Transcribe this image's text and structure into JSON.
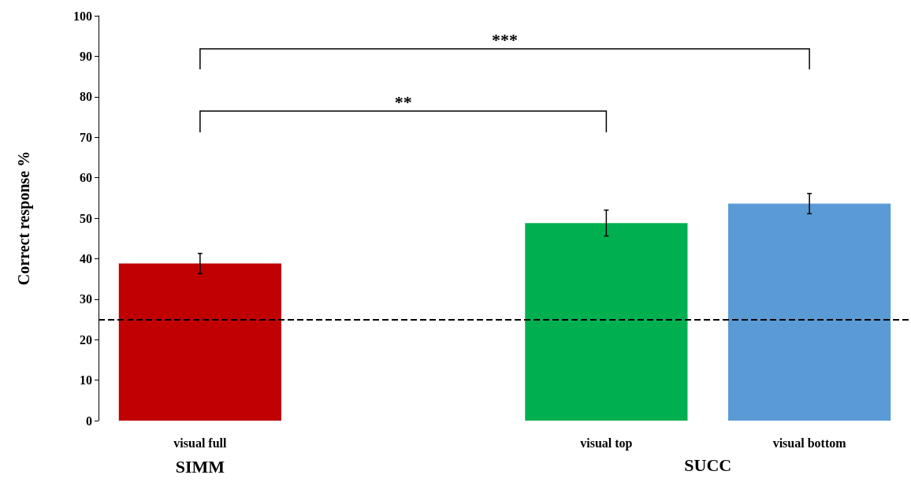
{
  "chart_data": {
    "type": "bar",
    "ylabel": "Correct response %",
    "categories": [
      "visual full",
      null,
      "visual top",
      "visual bottom"
    ],
    "values": [
      38.8,
      null,
      48.8,
      53.6
    ],
    "colors": [
      "#c00000",
      null,
      "#00b050",
      "#5b9bd5"
    ],
    "errors": [
      2.5,
      null,
      3.2,
      2.5
    ],
    "ylim": [
      0,
      100
    ],
    "yticks": [
      0,
      10,
      20,
      30,
      40,
      50,
      60,
      70,
      80,
      90,
      100
    ],
    "ref_lines": [
      {
        "axis": "y",
        "value": 25,
        "color": "#000000",
        "line_style": "dashed"
      }
    ],
    "annotations": [
      "**",
      "***",
      "SIMM",
      "SUCC"
    ],
    "grid": false
  }
}
